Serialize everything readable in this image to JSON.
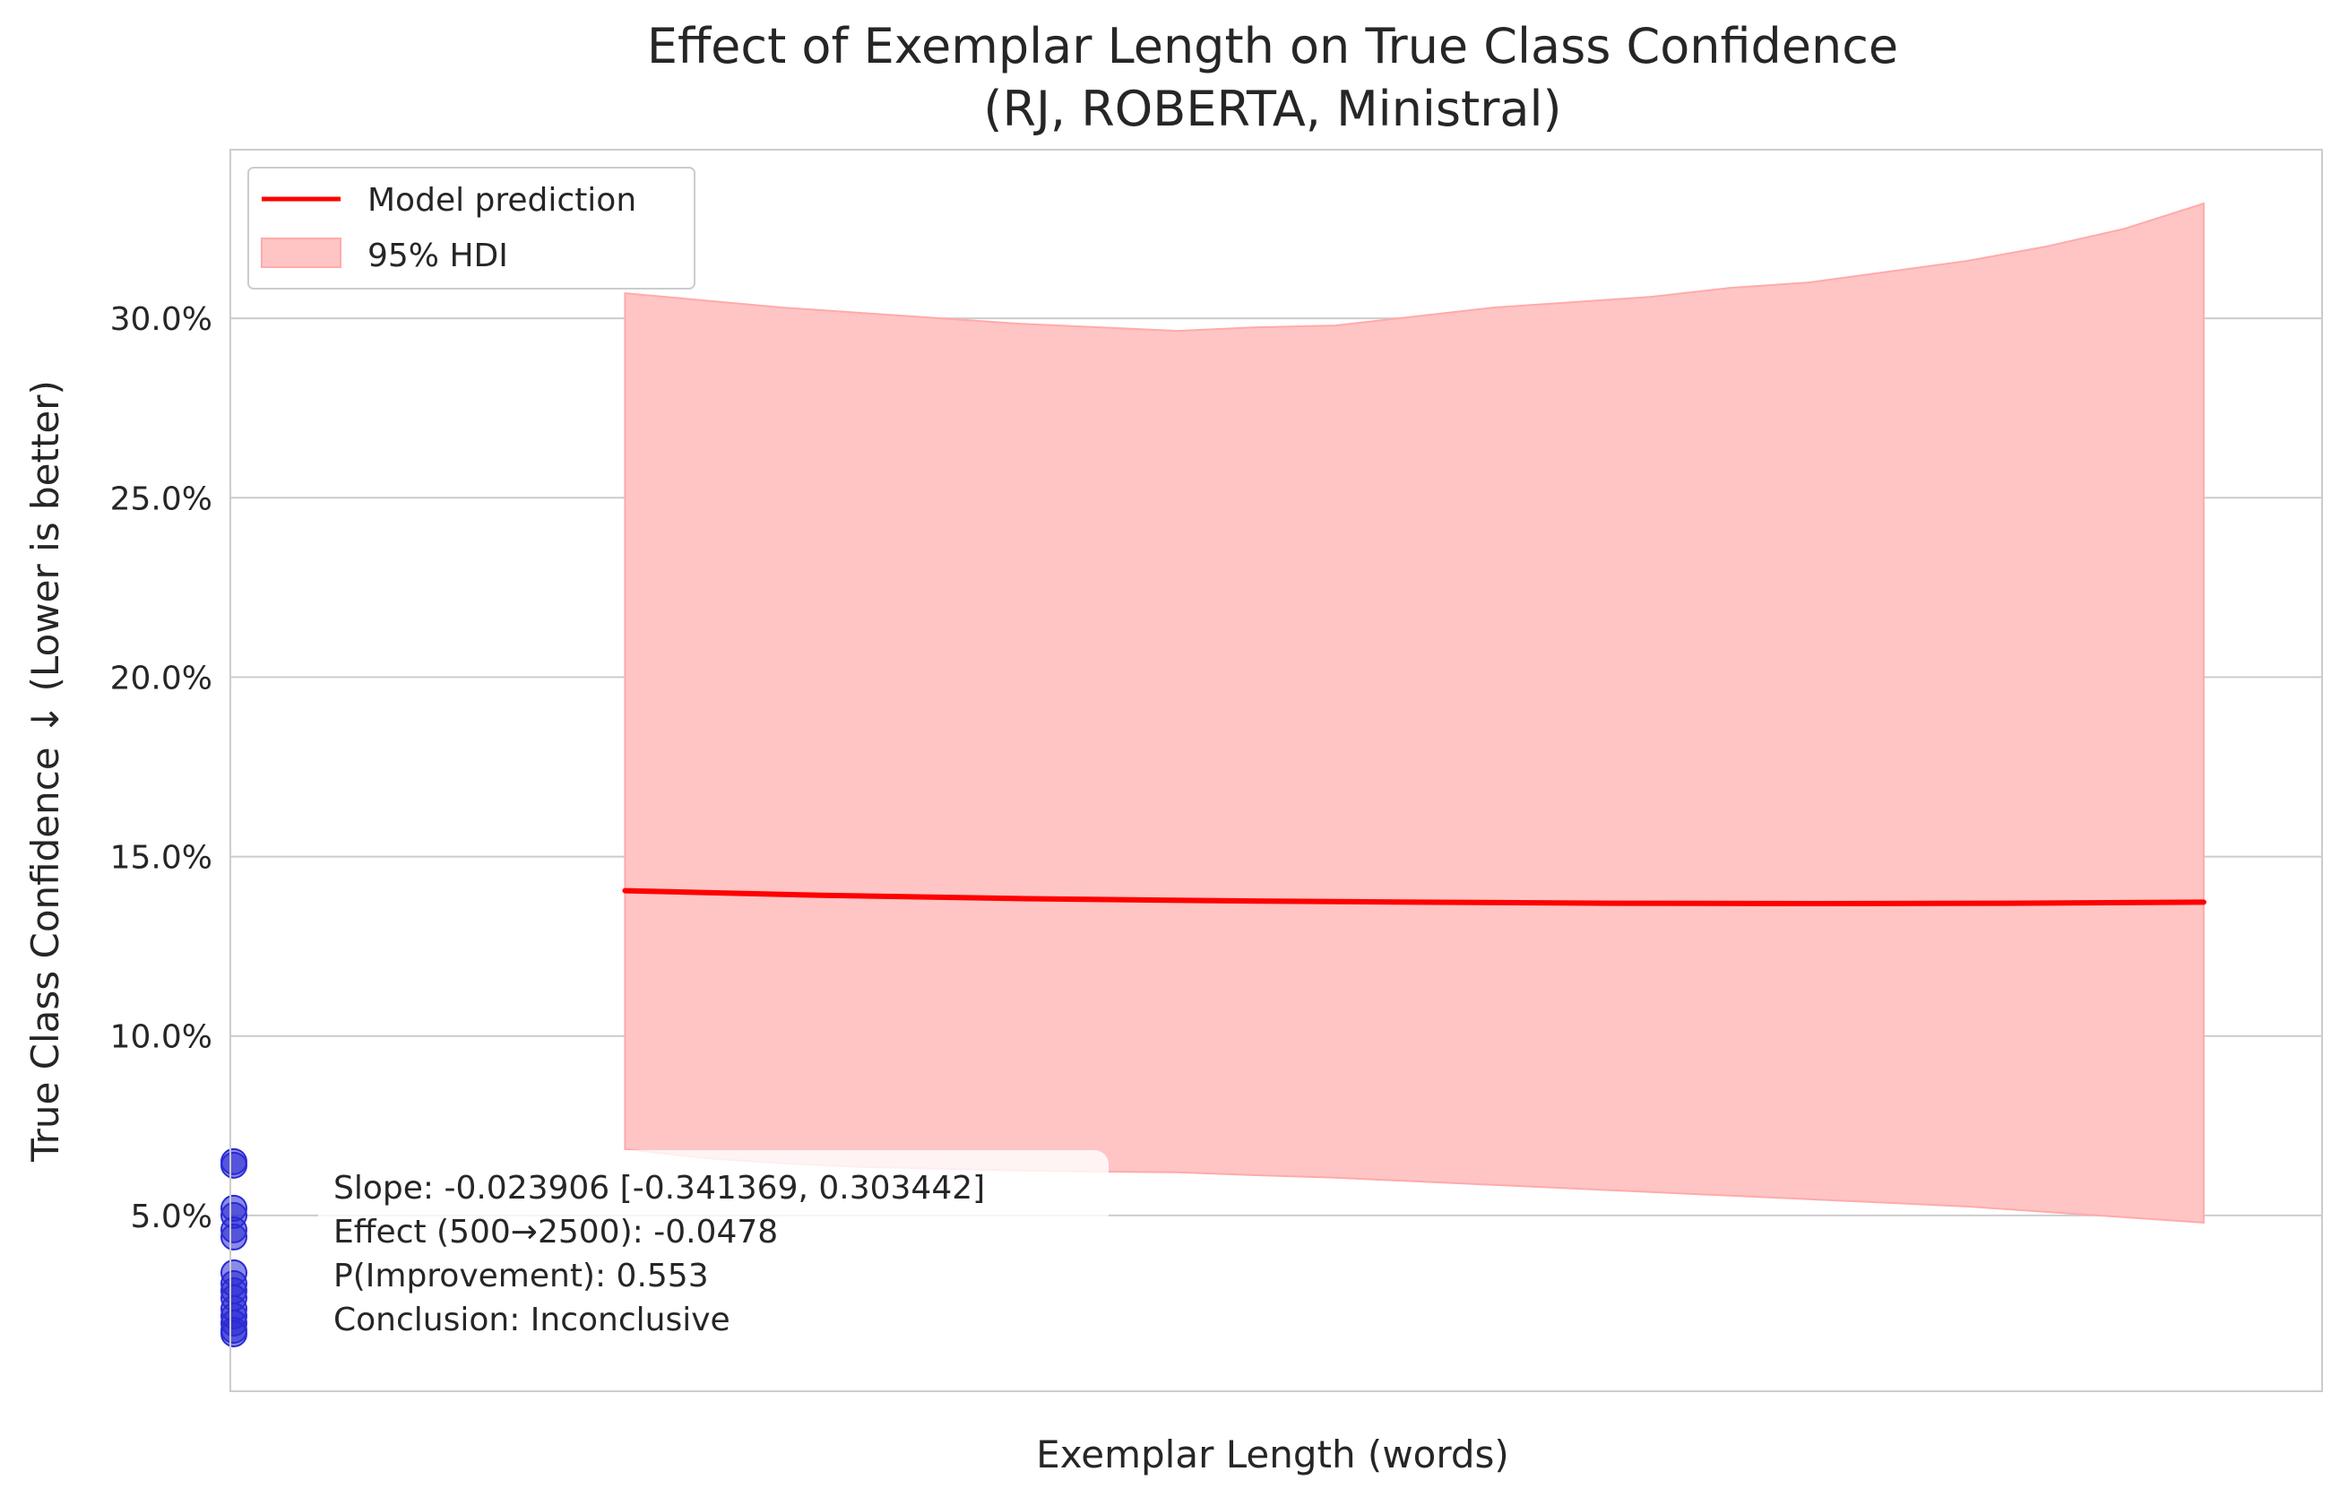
{
  "colors": {
    "prediction_line": "#ff0000",
    "hdi_fill": "#ffc5c5",
    "hdi_edge": "#ffaaaa",
    "observed_points": "#2a2ad4",
    "grid": "#cccccc",
    "frame": "#cccccc",
    "text": "#262626"
  },
  "chart_data": {
    "type": "line",
    "title_line1": "Effect of Exemplar Length on True Class Confidence",
    "title_line2": "(RJ, ROBERTA, Ministral)",
    "xlabel": "Exemplar Length (words)",
    "ylabel": "True Class Confidence ↓ (Lower is better)",
    "xlim": [
      0,
      2650
    ],
    "ylim": [
      0.1,
      34.7
    ],
    "y_ticks": [
      {
        "value": 5,
        "label": "5.0%"
      },
      {
        "value": 10,
        "label": "10.0%"
      },
      {
        "value": 15,
        "label": "15.0%"
      },
      {
        "value": 20,
        "label": "20.0%"
      },
      {
        "value": 25,
        "label": "25.0%"
      },
      {
        "value": 30,
        "label": "30.0%"
      }
    ],
    "grid": "horizontal",
    "legend_placement": "top-left",
    "legend": [
      {
        "label": "Model prediction",
        "kind": "line"
      },
      {
        "label": "95% HDI",
        "kind": "patch"
      }
    ],
    "prediction": {
      "x": [
        500,
        750,
        1000,
        1250,
        1500,
        1750,
        2000,
        2250,
        2500
      ],
      "y": [
        14.05,
        13.92,
        13.83,
        13.77,
        13.73,
        13.7,
        13.69,
        13.7,
        13.73
      ]
    },
    "hdi": {
      "x": [
        500,
        600,
        700,
        800,
        900,
        1000,
        1100,
        1200,
        1300,
        1400,
        1500,
        1600,
        1700,
        1800,
        1900,
        2000,
        2100,
        2200,
        2300,
        2400,
        2500
      ],
      "upper": [
        30.7,
        30.5,
        30.3,
        30.15,
        30.0,
        29.85,
        29.75,
        29.65,
        29.75,
        29.8,
        30.05,
        30.3,
        30.45,
        30.6,
        30.85,
        31.0,
        31.3,
        31.6,
        32.0,
        32.5,
        33.2
      ],
      "lower": [
        6.85,
        6.6,
        6.45,
        6.35,
        6.3,
        6.25,
        6.22,
        6.2,
        6.12,
        6.05,
        5.95,
        5.85,
        5.75,
        5.65,
        5.55,
        5.45,
        5.35,
        5.25,
        5.1,
        4.95,
        4.8
      ]
    },
    "observed": {
      "x": [
        0,
        0,
        0,
        0,
        0,
        0,
        0,
        0,
        0,
        0,
        0,
        0,
        0,
        0,
        0
      ],
      "y": [
        6.4,
        6.5,
        5.2,
        5.0,
        4.6,
        4.4,
        3.4,
        3.1,
        2.9,
        2.7,
        2.4,
        2.2,
        2.0,
        1.8,
        1.7
      ]
    },
    "annotations": [
      "Slope: -0.023906 [-0.341369, 0.303442]",
      "Effect (500→2500): -0.0478",
      "P(Improvement): 0.553",
      "Conclusion: Inconclusive"
    ]
  }
}
